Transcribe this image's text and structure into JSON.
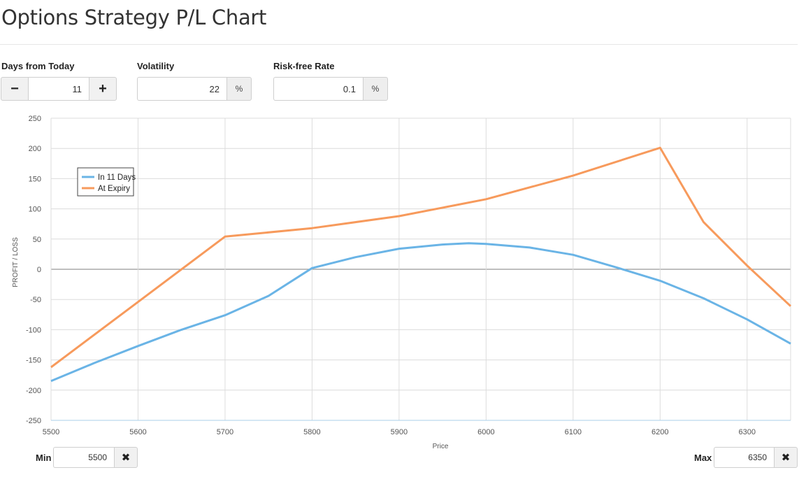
{
  "title": "Options Strategy P/L Chart",
  "controls": {
    "days": {
      "label": "Days from Today",
      "value": "11",
      "minus": "−",
      "plus": "+"
    },
    "volatility": {
      "label": "Volatility",
      "value": "22",
      "unit": "%"
    },
    "rate": {
      "label": "Risk-free Rate",
      "value": "0.1",
      "unit": "%"
    }
  },
  "range": {
    "min_label": "Min",
    "min_value": "5500",
    "max_label": "Max",
    "max_value": "6350",
    "clear_icon": "✖"
  },
  "colors": {
    "in_days": "#6ab4e6",
    "at_expiry": "#f79a5c",
    "grid": "#dcdcdc",
    "zero": "#999999"
  },
  "chart_data": {
    "type": "line",
    "xlabel": "Price",
    "ylabel": "PROFIT / LOSS",
    "xlim": [
      5500,
      6350
    ],
    "ylim": [
      -250,
      250
    ],
    "xticks": [
      5500,
      5600,
      5700,
      5800,
      5900,
      6000,
      6100,
      6200,
      6300
    ],
    "yticks": [
      250,
      200,
      150,
      100,
      50,
      0,
      -50,
      -100,
      -150,
      -200,
      -250
    ],
    "grid": true,
    "legend_position": "top-left",
    "series": [
      {
        "name": "In 11 Days",
        "color": "#6ab4e6",
        "points": [
          [
            5500,
            -185
          ],
          [
            5550,
            -155
          ],
          [
            5600,
            -127
          ],
          [
            5650,
            -100
          ],
          [
            5700,
            -76
          ],
          [
            5750,
            -44
          ],
          [
            5800,
            2
          ],
          [
            5850,
            20
          ],
          [
            5900,
            34
          ],
          [
            5950,
            41
          ],
          [
            5980,
            43
          ],
          [
            6000,
            42
          ],
          [
            6050,
            36
          ],
          [
            6100,
            24
          ],
          [
            6150,
            3
          ],
          [
            6200,
            -19
          ],
          [
            6250,
            -48
          ],
          [
            6300,
            -83
          ],
          [
            6350,
            -123
          ]
        ]
      },
      {
        "name": "At Expiry",
        "color": "#f79a5c",
        "points": [
          [
            5500,
            -162
          ],
          [
            5600,
            -54
          ],
          [
            5700,
            54
          ],
          [
            5800,
            68
          ],
          [
            5900,
            88
          ],
          [
            6000,
            116
          ],
          [
            6100,
            155
          ],
          [
            6200,
            201
          ],
          [
            6250,
            78
          ],
          [
            6300,
            6
          ],
          [
            6350,
            -61
          ]
        ]
      }
    ]
  }
}
